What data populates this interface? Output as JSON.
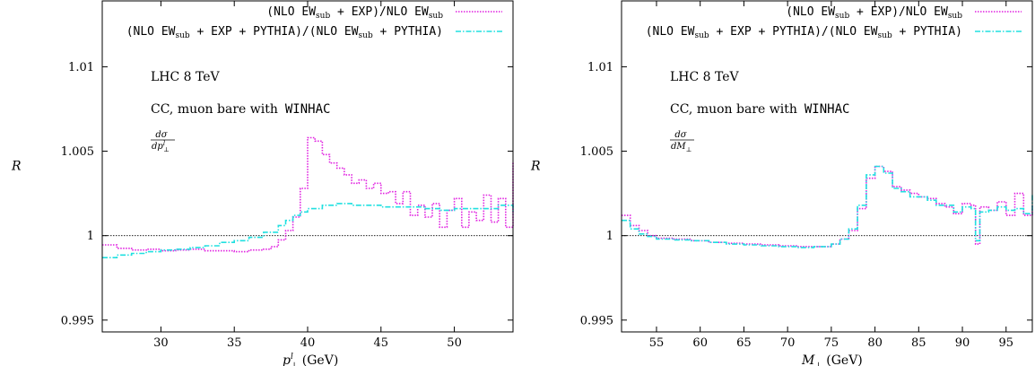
{
  "chart_data": [
    {
      "type": "line",
      "step": true,
      "ylabel": "R",
      "xlabel_var": "p",
      "xlabel_sup": "l",
      "xlabel_sub": "⊥",
      "xlabel_unit": " (GeV)",
      "xlim": [
        26,
        54
      ],
      "ylim": [
        0.9943,
        1.0139
      ],
      "xticks": [
        30,
        35,
        40,
        45,
        50
      ],
      "yticks": [
        0.995,
        1,
        1.005,
        1.01
      ],
      "ytick_labels": [
        "0.995",
        "1",
        "1.005",
        "1.01"
      ],
      "reference_line": 1,
      "annotations": {
        "energy": "LHC 8 TeV",
        "process": "CC, muon bare  with",
        "generator": "WINHAC",
        "obs_num": "dσ",
        "obs_den": "dp",
        "obs_den_sup": "l",
        "obs_den_sub": "⊥"
      },
      "legend_position": "top-right",
      "series": [
        {
          "name": "(NLO EWsub + EXP)/NLO EWsub",
          "legend_parts": [
            {
              "t": "(NLO EW",
              "mono": true
            },
            {
              "t": "sub",
              "sub": true
            },
            {
              "t": " + EXP)/NLO EW",
              "mono": true
            },
            {
              "t": "sub",
              "sub": true
            }
          ],
          "color": "#e020e0",
          "dash": "1.5,1.5",
          "x": [
            26,
            27,
            28,
            29,
            30,
            31,
            32,
            33,
            34,
            35,
            36,
            37,
            37.5,
            38,
            38.5,
            39,
            39.5,
            40,
            40.5,
            41,
            41.5,
            42,
            42.5,
            43,
            43.5,
            44,
            44.5,
            45,
            45.5,
            46,
            46.5,
            47,
            47.5,
            48,
            48.5,
            49,
            49.5,
            50,
            50.5,
            51,
            51.5,
            52,
            52.5,
            53,
            53.5,
            54
          ],
          "y": [
            0.99945,
            0.99925,
            0.99915,
            0.9992,
            0.9991,
            0.99915,
            0.9992,
            0.9991,
            0.9991,
            0.99905,
            0.99915,
            0.9992,
            0.99935,
            0.99975,
            1.0003,
            1.0011,
            1.0028,
            1.0058,
            1.0056,
            1.0048,
            1.0043,
            1.004,
            1.0036,
            1.0031,
            1.0033,
            1.0028,
            1.0031,
            1.0025,
            1.0026,
            1.0019,
            1.0026,
            1.0012,
            1.0018,
            1.0011,
            1.0019,
            1.0005,
            1.0015,
            1.0022,
            1.0005,
            1.0014,
            1.0009,
            1.0024,
            1.0008,
            1.0022,
            1.0005,
            1.0044
          ]
        },
        {
          "name": "(NLO EWsub + EXP + PYTHIA)/(NLO EWsub + PYTHIA)",
          "legend_parts": [
            {
              "t": "(NLO EW",
              "mono": true
            },
            {
              "t": "sub",
              "sub": true
            },
            {
              "t": " + EXP + PYTHIA)/(NLO EW",
              "mono": true
            },
            {
              "t": "sub",
              "sub": true
            },
            {
              "t": " + PYTHIA)",
              "mono": true
            }
          ],
          "color": "#20e0e0",
          "dash": "6,2,1.5,2",
          "x": [
            26,
            27,
            28,
            29,
            30,
            31,
            32,
            33,
            34,
            35,
            36,
            37,
            38,
            38.5,
            39,
            39.5,
            40,
            41,
            42,
            43,
            44,
            45,
            46,
            47,
            48,
            49,
            50,
            51,
            52,
            53,
            54
          ],
          "y": [
            0.9987,
            0.99885,
            0.99895,
            0.99905,
            0.99915,
            0.9992,
            0.9993,
            0.9994,
            0.9996,
            0.9997,
            0.9999,
            1.0002,
            1.0006,
            1.0009,
            1.0012,
            1.0014,
            1.0016,
            1.0018,
            1.0019,
            1.0018,
            1.0018,
            1.0017,
            1.0017,
            1.0017,
            1.0016,
            1.0015,
            1.0016,
            1.0016,
            1.0016,
            1.0018,
            1.0013
          ]
        }
      ]
    },
    {
      "type": "line",
      "step": true,
      "ylabel": "R",
      "xlabel_var": "M",
      "xlabel_sup": "",
      "xlabel_sub": "⊥",
      "xlabel_unit": " (GeV)",
      "xlim": [
        51,
        98
      ],
      "ylim": [
        0.9943,
        1.0139
      ],
      "xticks": [
        55,
        60,
        65,
        70,
        75,
        80,
        85,
        90,
        95
      ],
      "yticks": [
        0.995,
        1,
        1.005,
        1.01
      ],
      "ytick_labels": [
        "0.995",
        "1",
        "1.005",
        "1.01"
      ],
      "reference_line": 1,
      "annotations": {
        "energy": "LHC 8 TeV",
        "process": "CC, muon bare  with",
        "generator": "WINHAC",
        "obs_num": "dσ",
        "obs_den": "dM",
        "obs_den_sup": "",
        "obs_den_sub": "⊥"
      },
      "legend_position": "top-right",
      "series": [
        {
          "name": "(NLO EWsub + EXP)/NLO EWsub",
          "legend_parts": [
            {
              "t": "(NLO EW",
              "mono": true
            },
            {
              "t": "sub",
              "sub": true
            },
            {
              "t": " + EXP)/NLO EW",
              "mono": true
            },
            {
              "t": "sub",
              "sub": true
            }
          ],
          "color": "#e020e0",
          "dash": "1.5,1.5",
          "x": [
            51,
            52,
            53,
            54,
            55,
            57,
            59,
            61,
            63,
            65,
            67,
            69,
            71,
            73,
            75,
            76,
            77,
            78,
            79,
            80,
            81,
            82,
            83,
            84,
            85,
            86,
            87,
            88,
            89,
            90,
            91,
            91.5,
            92,
            93,
            94,
            95,
            96,
            97,
            98
          ],
          "y": [
            1.0012,
            1.0006,
            1.0003,
            1.0,
            0.99985,
            0.9998,
            0.9997,
            0.9996,
            0.99955,
            0.9995,
            0.99945,
            0.9994,
            0.99935,
            0.99935,
            0.9995,
            0.9998,
            1.0003,
            1.0016,
            1.0034,
            1.0041,
            1.0038,
            1.0029,
            1.0027,
            1.0025,
            1.0023,
            1.0022,
            1.0019,
            1.0017,
            1.0013,
            1.0019,
            1.0018,
            0.9995,
            1.0017,
            1.0015,
            1.002,
            1.0012,
            1.0025,
            1.0012,
            1.0018
          ]
        },
        {
          "name": "(NLO EWsub + EXP + PYTHIA)/(NLO EWsub + PYTHIA)",
          "legend_parts": [
            {
              "t": "(NLO EW",
              "mono": true
            },
            {
              "t": "sub",
              "sub": true
            },
            {
              "t": " + EXP + PYTHIA)/(NLO EW",
              "mono": true
            },
            {
              "t": "sub",
              "sub": true
            },
            {
              "t": " + PYTHIA)",
              "mono": true
            }
          ],
          "color": "#20e0e0",
          "dash": "6,2,1.5,2",
          "x": [
            51,
            52,
            53,
            54,
            55,
            57,
            59,
            61,
            63,
            65,
            67,
            69,
            71,
            73,
            75,
            76,
            77,
            78,
            79,
            80,
            81,
            82,
            83,
            84,
            85,
            86,
            87,
            88,
            89,
            90,
            91,
            91.5,
            92,
            93,
            94,
            95,
            96,
            97,
            98
          ],
          "y": [
            1.0009,
            1.0004,
            1.0001,
            0.99995,
            0.9998,
            0.99975,
            0.9997,
            0.9996,
            0.9995,
            0.99945,
            0.9994,
            0.99935,
            0.9993,
            0.99935,
            0.9995,
            0.9998,
            1.0004,
            1.0018,
            1.0036,
            1.0041,
            1.0037,
            1.0028,
            1.0026,
            1.0023,
            1.0023,
            1.0021,
            1.0018,
            1.0018,
            1.0014,
            1.0017,
            1.0016,
            0.9997,
            1.0014,
            1.0015,
            1.0017,
            1.0015,
            1.0016,
            1.0013,
            1.0025
          ]
        }
      ]
    }
  ]
}
